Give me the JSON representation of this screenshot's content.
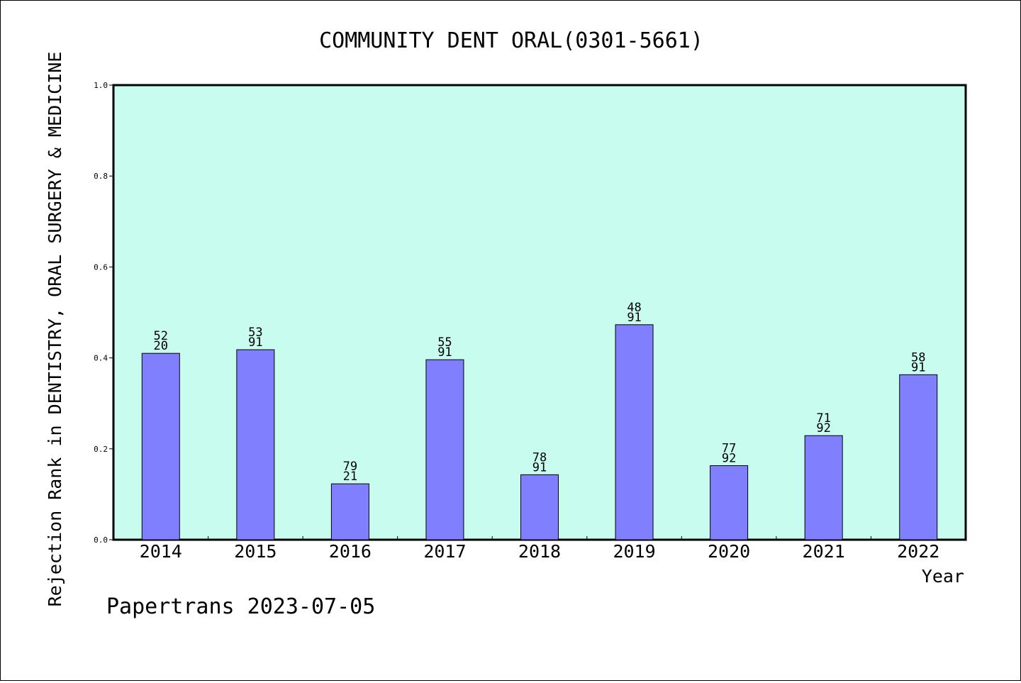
{
  "chart_data": {
    "type": "bar",
    "title": "COMMUNITY DENT ORAL(0301-5661)",
    "xlabel": "Year",
    "ylabel": "Rejection Rank in DENTISTRY, ORAL SURGERY & MEDICINE",
    "footer": "Papertrans 2023-07-05",
    "categories": [
      "2014",
      "2015",
      "2016",
      "2017",
      "2018",
      "2019",
      "2020",
      "2021",
      "2022"
    ],
    "values": [
      0.41,
      0.418,
      0.123,
      0.396,
      0.143,
      0.473,
      0.163,
      0.229,
      0.363
    ],
    "bar_labels": [
      [
        "52",
        "20"
      ],
      [
        "53",
        "91"
      ],
      [
        "79",
        "21"
      ],
      [
        "55",
        "91"
      ],
      [
        "78",
        "91"
      ],
      [
        "48",
        "91"
      ],
      [
        "77",
        "92"
      ],
      [
        "71",
        "92"
      ],
      [
        "58",
        "91"
      ]
    ],
    "ylim": [
      0,
      1.0
    ],
    "yticks": [
      "0.0",
      "0.2",
      "0.4",
      "0.6",
      "0.8",
      "1.0"
    ],
    "grid": false,
    "colors": {
      "plot_background": "#c8fcee",
      "bar_fill": "#8080ff",
      "bar_stroke": "#000000",
      "axis": "#000000"
    }
  }
}
